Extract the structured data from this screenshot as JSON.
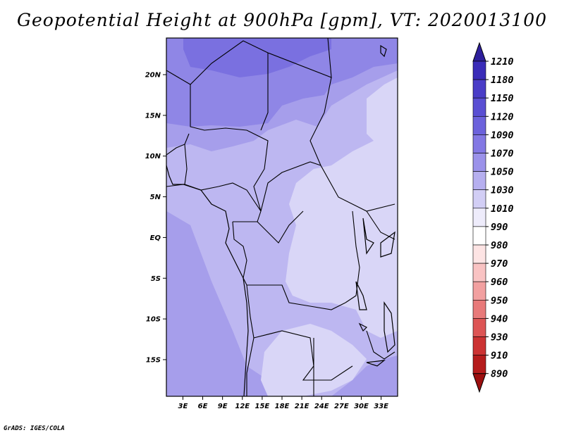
{
  "title": "Geopotential Height at 900hPa [gpm], VT: 2020013100",
  "credit": "GrADS: IGES/COLA",
  "map": {
    "lat_ticks": [
      "20N",
      "15N",
      "10N",
      "5N",
      "EQ",
      "5S",
      "10S",
      "15S"
    ],
    "lon_ticks": [
      "3E",
      "6E",
      "9E",
      "12E",
      "15E",
      "18E",
      "21E",
      "24E",
      "27E",
      "30E",
      "33E"
    ],
    "lat_range": [
      -19.5,
      24.5
    ],
    "lon_range": [
      0.5,
      35.5
    ]
  },
  "colorbar": {
    "levels": [
      "1210",
      "1180",
      "1150",
      "1120",
      "1090",
      "1070",
      "1050",
      "1030",
      "1010",
      "990",
      "980",
      "970",
      "960",
      "950",
      "940",
      "930",
      "910",
      "890"
    ],
    "colors": [
      "#2e1f9c",
      "#3a2cb8",
      "#4a3dc7",
      "#5a4fd3",
      "#6c62dc",
      "#8378e4",
      "#9b92ea",
      "#b6afef",
      "#d2ceF5",
      "#eeecfb",
      "#ffffff",
      "#fde4e4",
      "#f9c3c3",
      "#f2a0a0",
      "#e87a7a",
      "#dd5555",
      "#cc3333",
      "#b51c1c",
      "#9c0f0f"
    ]
  },
  "field_colors": {
    "c1090": "#7a70e0",
    "c1070": "#8f86e6",
    "c1050": "#a69eeb",
    "c1030": "#bdb7f1",
    "c1010": "#d9d6f7"
  }
}
